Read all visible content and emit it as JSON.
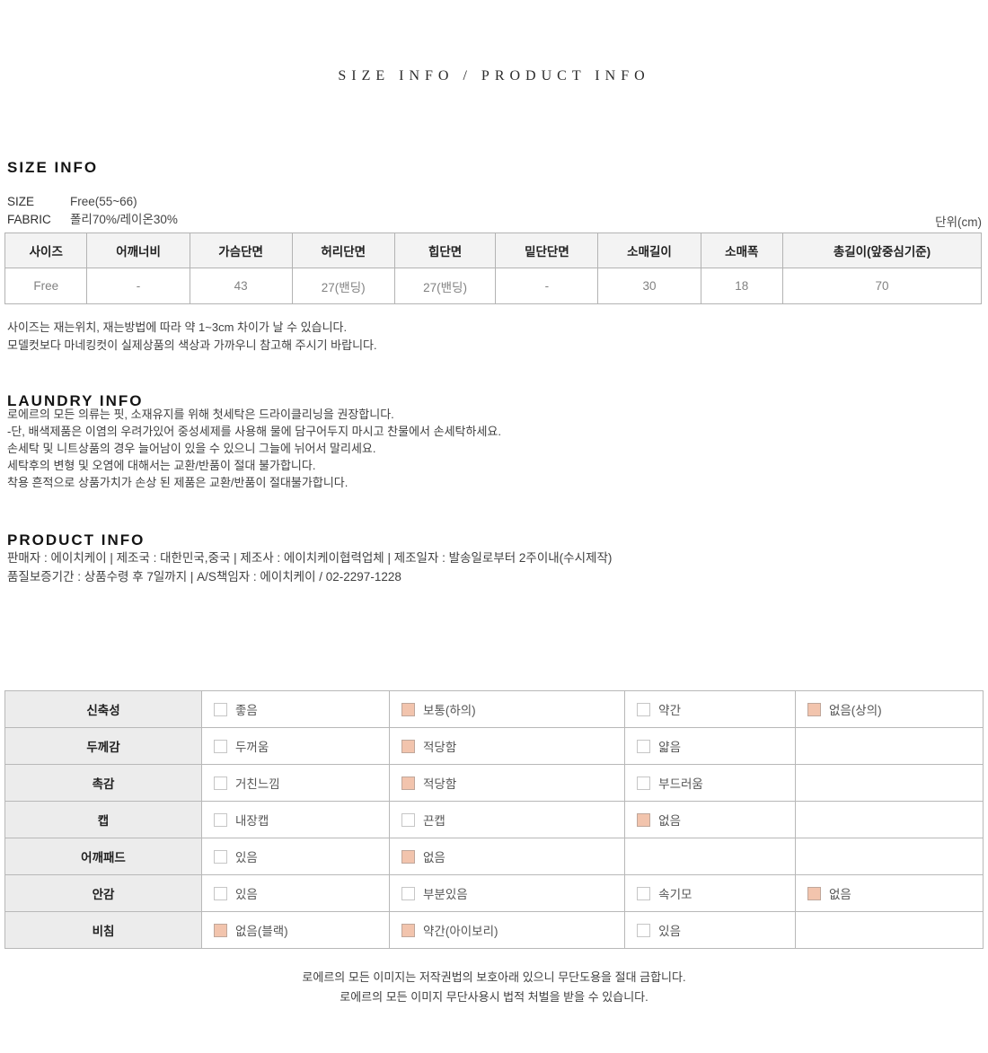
{
  "page_header": {
    "title": "SIZE INFO / PRODUCT INFO"
  },
  "size_info": {
    "heading": "SIZE INFO",
    "size_label": "SIZE",
    "size_value": "Free(55~66)",
    "fabric_label": "FABRIC",
    "fabric_value": "폴리70%/레이온30%",
    "unit_label": "단위(cm)",
    "table": {
      "headers": [
        "사이즈",
        "어깨너비",
        "가슴단면",
        "허리단면",
        "힙단면",
        "밑단단면",
        "소매길이",
        "소매폭",
        "총길이(앞중심기준)"
      ],
      "rows": [
        [
          "Free",
          "-",
          "43",
          "27(밴딩)",
          "27(밴딩)",
          "-",
          "30",
          "18",
          "70"
        ]
      ]
    },
    "notes": [
      "사이즈는 재는위치, 재는방법에 따라 약 1~3cm 차이가 날 수 있습니다.",
      "모델컷보다 마네킹컷이 실제상품의 색상과 가까우니 참고해 주시기 바랍니다."
    ]
  },
  "laundry_info": {
    "heading": "LAUNDRY INFO",
    "lines": [
      "로에르의 모든 의류는 핏, 소재유지를 위해 첫세탁은 드라이클리닝을 권장합니다.",
      "-단, 배색제품은 이염의 우려가있어 중성세제를 사용해 물에 담구어두지 마시고 찬물에서 손세탁하세요.",
      "손세탁 및 니트상품의 경우 늘어남이 있을 수 있으니 그늘에 뉘어서 말리세요.",
      "세탁후의 변형 및 오염에 대해서는 교환/반품이 절대 불가합니다.",
      "착용 흔적으로 상품가치가 손상 된 제품은 교환/반품이 절대불가합니다."
    ]
  },
  "product_info": {
    "heading": "PRODUCT INFO",
    "lines": [
      "판매자 : 에이치케이 | 제조국 : 대한민국,중국 | 제조사 : 에이치케이협력업체 | 제조일자 : 발송일로부터 2주이내(수시제작)",
      "품질보증기간 : 상품수령 후 7일까지 | A/S책임자 : 에이치케이 / 02-2297-1228"
    ]
  },
  "attribute_table": {
    "rows": [
      {
        "label": "신축성",
        "options": [
          {
            "text": "좋음",
            "checked": false
          },
          {
            "text": "보통(하의)",
            "checked": true
          },
          {
            "text": "약간",
            "checked": false
          },
          {
            "text": "없음(상의)",
            "checked": true
          }
        ]
      },
      {
        "label": "두께감",
        "options": [
          {
            "text": "두꺼움",
            "checked": false
          },
          {
            "text": "적당함",
            "checked": true
          },
          {
            "text": "얇음",
            "checked": false
          },
          null
        ]
      },
      {
        "label": "촉감",
        "options": [
          {
            "text": "거친느낌",
            "checked": false
          },
          {
            "text": "적당함",
            "checked": true
          },
          {
            "text": "부드러움",
            "checked": false
          },
          null
        ]
      },
      {
        "label": "캡",
        "options": [
          {
            "text": "내장캡",
            "checked": false
          },
          {
            "text": "끈캡",
            "checked": false
          },
          {
            "text": "없음",
            "checked": true
          },
          null
        ]
      },
      {
        "label": "어깨패드",
        "options": [
          {
            "text": "있음",
            "checked": false
          },
          {
            "text": "없음",
            "checked": true
          },
          null,
          null
        ]
      },
      {
        "label": "안감",
        "options": [
          {
            "text": "있음",
            "checked": false
          },
          {
            "text": "부분있음",
            "checked": false
          },
          {
            "text": "속기모",
            "checked": false
          },
          {
            "text": "없음",
            "checked": true
          }
        ]
      },
      {
        "label": "비침",
        "options": [
          {
            "text": "없음(블랙)",
            "checked": true
          },
          {
            "text": "약간(아이보리)",
            "checked": true
          },
          {
            "text": "있음",
            "checked": false
          },
          null
        ]
      }
    ]
  },
  "footer": {
    "lines": [
      "로에르의 모든 이미지는 저작권법의 보호아래 있으니 무단도용을 절대 금합니다.",
      "로에르의 모든 이미지 무단사용시 법적 처벌을 받을 수 있습니다."
    ]
  },
  "colors": {
    "checkbox_checked_fill": "#f2c4ad",
    "checkbox_checked_border": "#bfa79b",
    "checkbox_unchecked_border": "#c6c6c6",
    "table_border": "#b3b3b3",
    "size_header_bg": "#f3f3f3",
    "attr_label_bg": "#ececec"
  }
}
